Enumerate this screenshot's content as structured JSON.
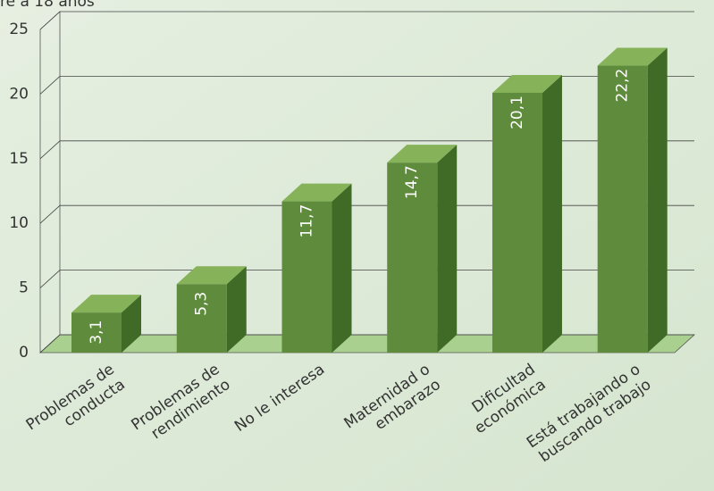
{
  "chart_data": {
    "type": "bar3d",
    "title": "re a 18 años",
    "categories": [
      [
        "Problemas de",
        "conducta"
      ],
      [
        "Problemas de",
        "rendimiento"
      ],
      [
        "No le interesa"
      ],
      [
        "Maternidad o",
        "embarazo"
      ],
      [
        "Dificultad",
        "económica"
      ],
      [
        "Está trabajando o",
        "buscando trabajo"
      ]
    ],
    "values": [
      3.1,
      5.3,
      11.7,
      14.7,
      20.1,
      22.2
    ],
    "value_labels": [
      "3,1",
      "5,3",
      "11,7",
      "14,7",
      "20,1",
      "22,2"
    ],
    "color": "#5e8c3c",
    "ylim": [
      0,
      25
    ],
    "yticks": [
      0,
      5,
      10,
      15,
      20,
      25
    ],
    "grid": true
  }
}
